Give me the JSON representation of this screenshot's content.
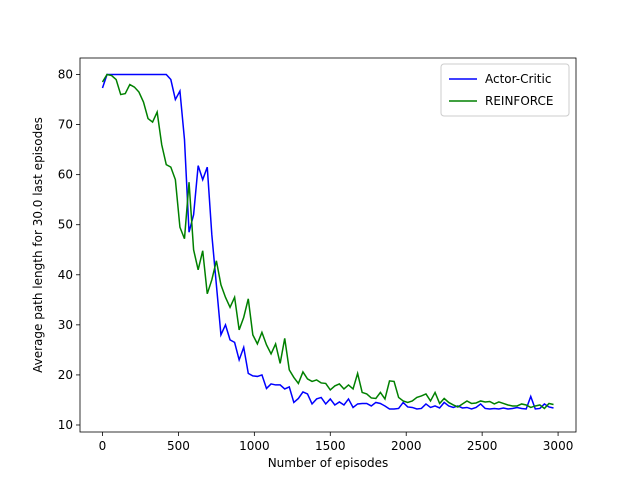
{
  "chart_data": {
    "type": "line",
    "xlabel": "Number of episodes",
    "ylabel": "Average path length for 30.0 last episodes",
    "x": [
      0,
      30,
      60,
      90,
      120,
      150,
      180,
      210,
      240,
      270,
      300,
      330,
      360,
      390,
      420,
      450,
      480,
      510,
      540,
      570,
      600,
      630,
      660,
      690,
      720,
      750,
      780,
      810,
      840,
      870,
      900,
      930,
      960,
      990,
      1020,
      1050,
      1080,
      1110,
      1140,
      1170,
      1200,
      1230,
      1260,
      1290,
      1320,
      1350,
      1380,
      1410,
      1440,
      1470,
      1500,
      1530,
      1560,
      1590,
      1620,
      1650,
      1680,
      1710,
      1740,
      1770,
      1800,
      1830,
      1860,
      1890,
      1920,
      1950,
      1980,
      2010,
      2040,
      2070,
      2100,
      2130,
      2160,
      2190,
      2220,
      2250,
      2280,
      2310,
      2340,
      2370,
      2400,
      2430,
      2460,
      2490,
      2520,
      2550,
      2580,
      2610,
      2640,
      2670,
      2700,
      2730,
      2760,
      2790,
      2820,
      2850,
      2880,
      2910,
      2940,
      2970
    ],
    "series": [
      {
        "name": "Actor-Critic",
        "color": "#0000ff",
        "values": [
          77.3,
          80,
          80,
          80,
          80,
          80,
          80,
          80,
          80,
          80,
          80,
          80,
          80,
          80,
          80,
          79,
          75,
          76.7,
          67,
          48.5,
          52,
          61.8,
          59,
          61.5,
          48,
          38,
          28,
          30,
          27,
          26.5,
          23,
          25.5,
          20.3,
          19.8,
          19.7,
          20,
          17.3,
          18.2,
          18,
          18,
          17.2,
          17.6,
          14.5,
          15.3,
          16.6,
          16.2,
          14.2,
          15.2,
          15.5,
          14.2,
          15.2,
          14,
          14.6,
          14,
          15.2,
          13.5,
          14.2,
          14.3,
          14.3,
          13.8,
          14.5,
          14.3,
          13.8,
          13.2,
          13.2,
          13.3,
          14.5,
          13.6,
          13.5,
          13.2,
          13.3,
          14.2,
          13.5,
          13.8,
          13.4,
          14.5,
          13.8,
          13.5,
          13.8,
          13.4,
          13.5,
          13.2,
          13.5,
          14.2,
          13.3,
          13.2,
          13.3,
          13.2,
          13.4,
          13.2,
          13.3,
          13.5,
          13.3,
          13.2,
          15.7,
          13.2,
          13.3,
          14.2,
          13.6,
          13.4
        ]
      },
      {
        "name": "REINFORCE",
        "color": "#008000",
        "values": [
          78.5,
          80,
          79.8,
          79,
          76,
          76.2,
          78,
          77.5,
          76.5,
          74.5,
          71.2,
          70.5,
          72.5,
          66,
          62,
          61.5,
          59,
          49.5,
          47.2,
          58.5,
          45,
          41,
          44.8,
          36.2,
          39,
          42.8,
          38,
          35.5,
          33.5,
          35.5,
          29,
          31.5,
          35.2,
          28,
          26.2,
          28.5,
          26,
          24.2,
          26.2,
          22.3,
          27.3,
          21,
          19.5,
          18.3,
          20.6,
          19.2,
          18.7,
          19,
          18.4,
          18.3,
          17,
          17.8,
          18.2,
          17.2,
          18,
          17.2,
          20.3,
          16.5,
          16.2,
          15.4,
          15.3,
          16.5,
          15.2,
          18.8,
          18.7,
          15.5,
          14.8,
          14.5,
          14.8,
          15.5,
          15.8,
          16.2,
          14.8,
          16.5,
          14.3,
          15.3,
          14.5,
          14,
          13.6,
          14.2,
          14.8,
          14.3,
          14.4,
          14.8,
          14.6,
          14.7,
          14.2,
          14.6,
          14.3,
          14,
          13.8,
          13.8,
          14.2,
          14,
          13.5,
          13.8,
          14,
          13.3,
          14.3,
          14.1
        ]
      }
    ],
    "xlim": [
      -148,
      3118
    ],
    "xticks": [
      0,
      500,
      1000,
      1500,
      2000,
      2500,
      3000
    ],
    "ylim": [
      8.6,
      83.3
    ],
    "yticks": [
      10,
      20,
      30,
      40,
      50,
      60,
      70,
      80
    ],
    "grid": false,
    "legend": "upper right"
  }
}
